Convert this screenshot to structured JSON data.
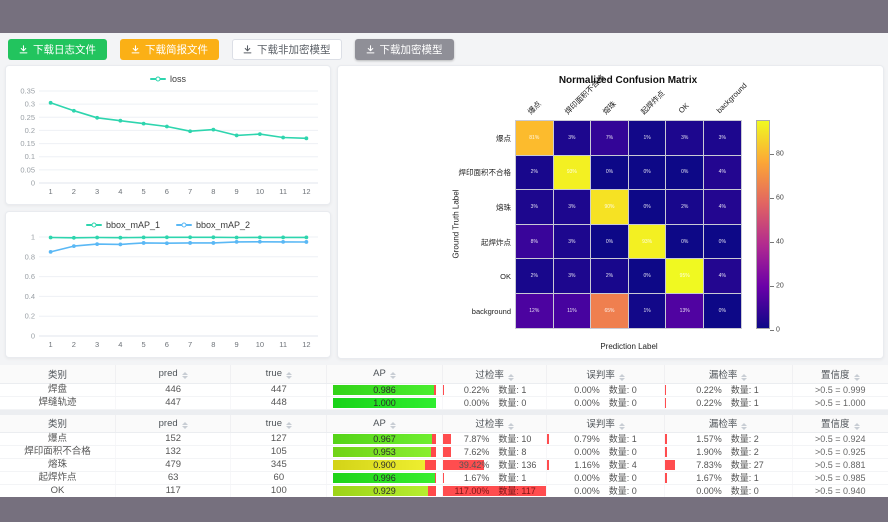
{
  "toolbar": {
    "buttons": [
      {
        "label": "下载日志文件",
        "type": "green",
        "icon": "download-icon"
      },
      {
        "label": "下载简报文件",
        "type": "orange",
        "icon": "download-icon"
      },
      {
        "label": "下载非加密模型",
        "type": "plain",
        "icon": "download-icon"
      },
      {
        "label": "下载加密模型",
        "type": "gray",
        "icon": "download-icon"
      }
    ]
  },
  "chart_data": [
    {
      "type": "line",
      "title": "loss",
      "x": [
        1,
        2,
        3,
        4,
        5,
        6,
        7,
        8,
        9,
        10,
        11,
        12
      ],
      "series": [
        {
          "name": "loss",
          "color": "#2ed5ae",
          "values": [
            0.305,
            0.275,
            0.248,
            0.237,
            0.226,
            0.215,
            0.197,
            0.203,
            0.181,
            0.186,
            0.173,
            0.17
          ]
        }
      ],
      "yticks": [
        0,
        0.05,
        0.1,
        0.15,
        0.2,
        0.25,
        0.3,
        0.35
      ],
      "ylim": [
        0,
        0.35
      ],
      "grid": true,
      "legend_position": "top"
    },
    {
      "type": "line",
      "title": "bbox_mAP",
      "x": [
        1,
        2,
        3,
        4,
        5,
        6,
        7,
        8,
        9,
        10,
        11,
        12
      ],
      "series": [
        {
          "name": "bbox_mAP_1",
          "color": "#2ed5ae",
          "values": [
            0.995,
            0.992,
            0.995,
            0.993,
            0.996,
            0.997,
            0.997,
            0.997,
            0.995,
            0.996,
            0.996,
            0.996
          ]
        },
        {
          "name": "bbox_mAP_2",
          "color": "#5ab8f5",
          "values": [
            0.85,
            0.908,
            0.928,
            0.925,
            0.94,
            0.937,
            0.94,
            0.94,
            0.951,
            0.952,
            0.951,
            0.95
          ]
        }
      ],
      "yticks": [
        0,
        0.2,
        0.4,
        0.6,
        0.8,
        1
      ],
      "ylim": [
        0,
        1
      ],
      "grid": true,
      "legend_position": "top"
    },
    {
      "type": "heatmap",
      "title": "Normalized Confusion Matrix",
      "xlabel": "Prediction Label",
      "ylabel": "Ground Truth Label",
      "labels": [
        "爆点",
        "焊印面积不合格",
        "熔珠",
        "起焊炸点",
        "OK",
        "background"
      ],
      "unit": "%",
      "vmax": 95,
      "colorbar_ticks": [
        0,
        20,
        40,
        60,
        80
      ],
      "matrix": [
        [
          81,
          3,
          7,
          1,
          3,
          3
        ],
        [
          2,
          93,
          0,
          0,
          0,
          4
        ],
        [
          3,
          3,
          90,
          0,
          2,
          4
        ],
        [
          8,
          3,
          0,
          93,
          0,
          0
        ],
        [
          2,
          3,
          2,
          0,
          95,
          4
        ],
        [
          12,
          11,
          65,
          1,
          13,
          0
        ]
      ]
    }
  ],
  "table_headers": [
    {
      "label": "类别",
      "sortable": false
    },
    {
      "label": "pred",
      "sortable": true
    },
    {
      "label": "true",
      "sortable": true
    },
    {
      "label": "AP",
      "sortable": true
    },
    {
      "label": "过检率",
      "sortable": true
    },
    {
      "label": "误判率",
      "sortable": true
    },
    {
      "label": "漏检率",
      "sortable": true
    },
    {
      "label": "置信度",
      "sortable": true
    }
  ],
  "tables": [
    {
      "rows": [
        {
          "class": "焊盘",
          "pred": "446",
          "true": "447",
          "ap": {
            "text": "0.986",
            "value": 98.6
          },
          "over": {
            "pct": "0.22%",
            "count": "数量: 1",
            "bar": 0.22
          },
          "mis": {
            "pct": "0.00%",
            "count": "数量: 0",
            "bar": 0
          },
          "miss": {
            "pct": "0.22%",
            "count": "数量: 1",
            "bar": 0.22
          },
          "conf": ">0.5 = 0.999"
        },
        {
          "class": "焊缝轨迹",
          "pred": "447",
          "true": "448",
          "ap": {
            "text": "1.000",
            "value": 100
          },
          "over": {
            "pct": "0.00%",
            "count": "数量: 0",
            "bar": 0
          },
          "mis": {
            "pct": "0.00%",
            "count": "数量: 0",
            "bar": 0
          },
          "miss": {
            "pct": "0.22%",
            "count": "数量: 1",
            "bar": 0.22
          },
          "conf": ">0.5 = 1.000"
        }
      ]
    },
    {
      "rows": [
        {
          "class": "爆点",
          "pred": "152",
          "true": "127",
          "ap": {
            "text": "0.967",
            "value": 96.7
          },
          "over": {
            "pct": "7.87%",
            "count": "数量: 10",
            "bar": 7.87
          },
          "mis": {
            "pct": "0.79%",
            "count": "数量: 1",
            "bar": 0.79
          },
          "miss": {
            "pct": "1.57%",
            "count": "数量: 2",
            "bar": 1.57
          },
          "conf": ">0.5 = 0.924"
        },
        {
          "class": "焊印面积不合格",
          "pred": "132",
          "true": "105",
          "ap": {
            "text": "0.953",
            "value": 95.3
          },
          "over": {
            "pct": "7.62%",
            "count": "数量: 8",
            "bar": 7.62
          },
          "mis": {
            "pct": "0.00%",
            "count": "数量: 0",
            "bar": 0
          },
          "miss": {
            "pct": "1.90%",
            "count": "数量: 2",
            "bar": 1.9
          },
          "conf": ">0.5 = 0.925"
        },
        {
          "class": "熔珠",
          "pred": "479",
          "true": "345",
          "ap": {
            "text": "0.900",
            "value": 90.0
          },
          "over": {
            "pct": "39.42%",
            "count": "数量: 136",
            "bar": 39.42
          },
          "mis": {
            "pct": "1.16%",
            "count": "数量: 4",
            "bar": 1.16
          },
          "miss": {
            "pct": "7.83%",
            "count": "数量: 27",
            "bar": 7.83
          },
          "conf": ">0.5 = 0.881"
        },
        {
          "class": "起焊炸点",
          "pred": "63",
          "true": "60",
          "ap": {
            "text": "0.996",
            "value": 99.6
          },
          "over": {
            "pct": "1.67%",
            "count": "数量: 1",
            "bar": 1.67
          },
          "mis": {
            "pct": "0.00%",
            "count": "数量: 0",
            "bar": 0
          },
          "miss": {
            "pct": "1.67%",
            "count": "数量: 1",
            "bar": 1.67
          },
          "conf": ">0.5 = 0.985"
        },
        {
          "class": "OK",
          "pred": "117",
          "true": "100",
          "ap": {
            "text": "0.929",
            "value": 92.9
          },
          "over": {
            "pct": "117.00%",
            "count": "数量: 117",
            "bar": 117
          },
          "mis": {
            "pct": "0.00%",
            "count": "数量: 0",
            "bar": 0
          },
          "miss": {
            "pct": "0.00%",
            "count": "数量: 0",
            "bar": 0
          },
          "conf": ">0.5 = 0.940"
        }
      ]
    }
  ],
  "colors": {
    "teal_line": "#2ed5ae",
    "blue_line": "#5ab8f5",
    "ap_rest_red": "#ff4a4a",
    "rate_bar_red": "#ff4d4f",
    "band_gray": "#76707E"
  }
}
